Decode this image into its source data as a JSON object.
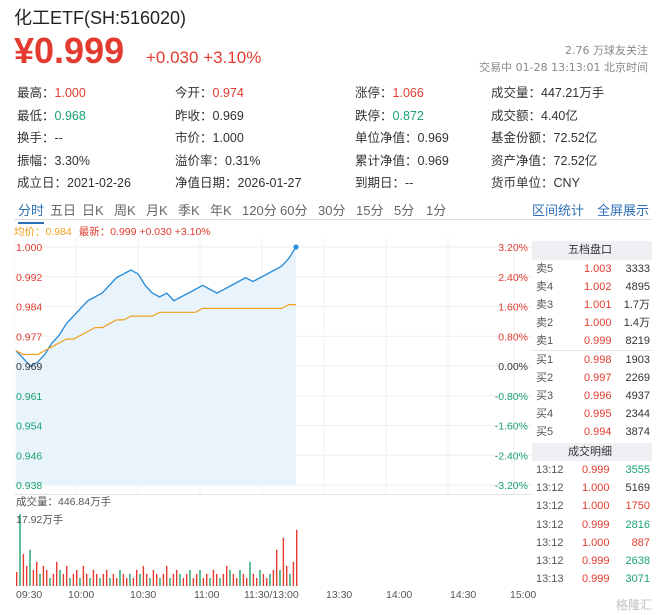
{
  "header": {
    "title": "化工ETF(SH:516020)",
    "price": "¥0.999",
    "change": "+0.030  +3.10%",
    "followers": "2.76 万球友关注",
    "status": "交易中 01-28 13:13:01 北京时间"
  },
  "stats": [
    [
      {
        "label": "最高：",
        "value": "1.000",
        "color": "red"
      },
      {
        "label": "今开：",
        "value": "0.974",
        "color": "red"
      },
      {
        "label": "涨停：",
        "value": "1.066",
        "color": "red"
      },
      {
        "label": "成交量：",
        "value": "447.21万手",
        "color": ""
      }
    ],
    [
      {
        "label": "最低：",
        "value": "0.968",
        "color": "green"
      },
      {
        "label": "昨收：",
        "value": "0.969",
        "color": ""
      },
      {
        "label": "跌停：",
        "value": "0.872",
        "color": "green"
      },
      {
        "label": "成交额：",
        "value": "4.40亿",
        "color": ""
      }
    ],
    [
      {
        "label": "换手：",
        "value": "--",
        "color": ""
      },
      {
        "label": "市价：",
        "value": "1.000",
        "color": ""
      },
      {
        "label": "单位净值：",
        "value": "0.969",
        "color": ""
      },
      {
        "label": "基金份额：",
        "value": "72.52亿",
        "color": ""
      }
    ],
    [
      {
        "label": "振幅：",
        "value": "3.30%",
        "color": ""
      },
      {
        "label": "溢价率：",
        "value": "0.31%",
        "color": ""
      },
      {
        "label": "累计净值：",
        "value": "0.969",
        "color": ""
      },
      {
        "label": "资产净值：",
        "value": "72.52亿",
        "color": ""
      }
    ],
    [
      {
        "label": "成立日：",
        "value": "2021-02-26",
        "color": ""
      },
      {
        "label": "净值日期：",
        "value": "2026-01-27",
        "color": ""
      },
      {
        "label": "到期日：",
        "value": "--",
        "color": ""
      },
      {
        "label": "货币单位：",
        "value": "CNY",
        "color": ""
      }
    ]
  ],
  "tabs": [
    "分时",
    "五日",
    "日K",
    "周K",
    "月K",
    "季K",
    "年K",
    "120分",
    "60分",
    "30分",
    "15分",
    "5分",
    "1分"
  ],
  "tabs_right": [
    "区间统计",
    "全屏展示"
  ],
  "active_tab": "分时",
  "legend": {
    "avg": "均价：0.984",
    "latest": "最新：0.999 +0.030 +3.10%"
  },
  "colors": {
    "up": "#e33b2f",
    "down": "#1aa36e",
    "price_line": "#2f8fd8",
    "avg_line": "#f0a020",
    "accent": "#2f6fb7"
  },
  "chart_data": {
    "type": "line",
    "y_labels_left": [
      "1.000",
      "0.992",
      "0.984",
      "0.977",
      "0.969",
      "0.961",
      "0.954",
      "0.946",
      "0.938"
    ],
    "y_labels_right": [
      "3.20%",
      "2.40%",
      "1.60%",
      "0.80%",
      "0.00%",
      "-0.80%",
      "-1.60%",
      "-2.40%",
      "-3.20%"
    ],
    "ylim": [
      0.938,
      1.0
    ],
    "x_labels": [
      "09:30",
      "10:00",
      "10:30",
      "11:00",
      "11:30/13:00",
      "13:30",
      "14:00",
      "14:30",
      "15:00"
    ],
    "series": [
      {
        "name": "价格",
        "values": [
          0.973,
          0.971,
          0.969,
          0.97,
          0.972,
          0.975,
          0.977,
          0.98,
          0.982,
          0.984,
          0.986,
          0.987,
          0.988,
          0.99,
          0.992,
          0.993,
          0.994,
          0.993,
          0.99,
          0.988,
          0.987,
          0.988,
          0.986,
          0.987,
          0.988,
          0.989,
          0.99,
          0.989,
          0.988,
          0.989,
          0.99,
          0.991,
          0.992,
          0.991,
          0.992,
          0.993,
          0.994,
          0.995,
          0.997,
          1.0
        ]
      },
      {
        "name": "均价",
        "values": [
          0.973,
          0.972,
          0.972,
          0.972,
          0.973,
          0.974,
          0.975,
          0.976,
          0.976,
          0.977,
          0.978,
          0.979,
          0.979,
          0.98,
          0.981,
          0.981,
          0.982,
          0.982,
          0.982,
          0.982,
          0.983,
          0.983,
          0.983,
          0.983,
          0.983,
          0.983,
          0.984,
          0.984,
          0.984,
          0.984,
          0.984,
          0.984,
          0.984,
          0.984,
          0.984,
          0.984,
          0.984,
          0.984,
          0.985,
          0.985
        ]
      }
    ],
    "volume_title": "成交量：446.84万手",
    "volume_max_label": "17.92万手",
    "volume": [
      3.5,
      17.9,
      8,
      5,
      9,
      4,
      6,
      3,
      5,
      4,
      2,
      3,
      6,
      4,
      3,
      5,
      2,
      3,
      4,
      2,
      5,
      3,
      2,
      4,
      3,
      2,
      3,
      4,
      2,
      3,
      2,
      4,
      3,
      2,
      3,
      2,
      4,
      3,
      5,
      3,
      2,
      4,
      3,
      2,
      3,
      5,
      2,
      3,
      4,
      3,
      2,
      3,
      4,
      2,
      3,
      4,
      2,
      3,
      2,
      4,
      3,
      2,
      3,
      5,
      4,
      3,
      2,
      4,
      3,
      2,
      6,
      3,
      2,
      4,
      3,
      2,
      3,
      4,
      9,
      4,
      12,
      5,
      3,
      6,
      14
    ]
  },
  "orderbook": {
    "title": "五档盘口",
    "rows": [
      {
        "label": "卖5",
        "price": "1.003",
        "vol": "3333"
      },
      {
        "label": "卖4",
        "price": "1.002",
        "vol": "4895"
      },
      {
        "label": "卖3",
        "price": "1.001",
        "vol": "1.7万"
      },
      {
        "label": "卖2",
        "price": "1.000",
        "vol": "1.4万"
      },
      {
        "label": "卖1",
        "price": "0.999",
        "vol": "8219"
      },
      {
        "label": "买1",
        "price": "0.998",
        "vol": "1903"
      },
      {
        "label": "买2",
        "price": "0.997",
        "vol": "2269"
      },
      {
        "label": "买3",
        "price": "0.996",
        "vol": "4937"
      },
      {
        "label": "买4",
        "price": "0.995",
        "vol": "2344"
      },
      {
        "label": "买5",
        "price": "0.994",
        "vol": "3874"
      }
    ]
  },
  "trades": {
    "title": "成交明细",
    "rows": [
      {
        "time": "13:12",
        "price": "0.999",
        "vol": "3555",
        "color": "green"
      },
      {
        "time": "13:12",
        "price": "1.000",
        "vol": "5169",
        "color": ""
      },
      {
        "time": "13:12",
        "price": "1.000",
        "vol": "1750",
        "color": "red"
      },
      {
        "time": "13:12",
        "price": "0.999",
        "vol": "2816",
        "color": "green"
      },
      {
        "time": "13:12",
        "price": "1.000",
        "vol": "887",
        "color": "red"
      },
      {
        "time": "13:12",
        "price": "0.999",
        "vol": "2638",
        "color": "green"
      },
      {
        "time": "13:13",
        "price": "0.999",
        "vol": "3071",
        "color": "green"
      }
    ]
  },
  "watermark": "格隆汇"
}
